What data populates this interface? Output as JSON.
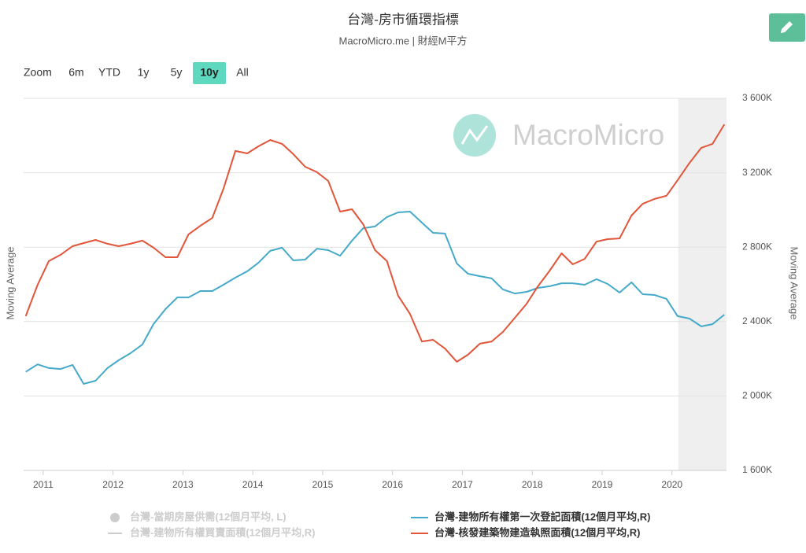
{
  "chart_data": {
    "type": "line",
    "title": "台灣-房市循環指標",
    "subtitle": "MacroMicro.me | 財經M平方",
    "y_label": "Moving Average",
    "y2_label": "Moving Average",
    "watermark": "MacroMicro",
    "x": [
      2010.75,
      2010.92,
      2011.08,
      2011.25,
      2011.42,
      2011.58,
      2011.75,
      2011.92,
      2012.08,
      2012.25,
      2012.42,
      2012.58,
      2012.75,
      2012.92,
      2013.08,
      2013.25,
      2013.42,
      2013.58,
      2013.75,
      2013.92,
      2014.08,
      2014.25,
      2014.42,
      2014.58,
      2014.75,
      2014.92,
      2015.08,
      2015.25,
      2015.42,
      2015.58,
      2015.75,
      2015.92,
      2016.08,
      2016.25,
      2016.42,
      2016.58,
      2016.75,
      2016.92,
      2017.08,
      2017.25,
      2017.42,
      2017.58,
      2017.75,
      2017.92,
      2018.08,
      2018.25,
      2018.42,
      2018.58,
      2018.75,
      2018.92,
      2019.08,
      2019.25,
      2019.42,
      2019.58,
      2019.75,
      2019.92,
      2020.08,
      2020.25,
      2020.42,
      2020.58,
      2020.75
    ],
    "xlim": [
      2010.72,
      2020.78
    ],
    "xticks": [
      2011,
      2012,
      2013,
      2014,
      2015,
      2016,
      2017,
      2018,
      2019,
      2020
    ],
    "y2lim": [
      1600,
      3600
    ],
    "y2ticks": [
      {
        "value": 1600,
        "label": "1 600K"
      },
      {
        "value": 2000,
        "label": "2 000K"
      },
      {
        "value": 2400,
        "label": "2 400K"
      },
      {
        "value": 2800,
        "label": "2 800K"
      },
      {
        "value": 3200,
        "label": "3 200K"
      },
      {
        "value": 3600,
        "label": "3 600K"
      }
    ],
    "grid": true,
    "plot_band": [
      2020.09,
      2020.78
    ],
    "series": [
      {
        "name": "台灣-建物所有權第一次登記面積(12個月平均,R)",
        "color": "#45a9c9",
        "axis": "y2",
        "values": [
          2130,
          2170,
          2150,
          2145,
          2167,
          2065,
          2082,
          2150,
          2192,
          2230,
          2277,
          2387,
          2467,
          2530,
          2530,
          2564,
          2564,
          2598,
          2636,
          2670,
          2716,
          2780,
          2797,
          2729,
          2733,
          2792,
          2784,
          2754,
          2835,
          2902,
          2911,
          2962,
          2987,
          2991,
          2932,
          2877,
          2873,
          2712,
          2657,
          2644,
          2632,
          2573,
          2551,
          2560,
          2581,
          2590,
          2606,
          2606,
          2598,
          2628,
          2602,
          2556,
          2611,
          2547,
          2543,
          2522,
          2429,
          2416,
          2374,
          2386,
          2437
        ]
      },
      {
        "name": "台灣-核發建築物建造執照面積(12個月平均,R)",
        "color": "#e2553a",
        "axis": "y2",
        "values": [
          2429,
          2598,
          2725,
          2759,
          2805,
          2822,
          2839,
          2818,
          2805,
          2818,
          2835,
          2797,
          2746,
          2746,
          2869,
          2915,
          2957,
          3114,
          3317,
          3304,
          3342,
          3376,
          3355,
          3300,
          3232,
          3203,
          3156,
          2991,
          3004,
          2923,
          2784,
          2725,
          2539,
          2441,
          2293,
          2302,
          2255,
          2184,
          2222,
          2281,
          2293,
          2344,
          2420,
          2496,
          2589,
          2674,
          2767,
          2708,
          2737,
          2830,
          2843,
          2847,
          2970,
          3033,
          3059,
          3076,
          3160,
          3253,
          3334,
          3355,
          3460
        ]
      }
    ],
    "hidden_series": [
      {
        "name": "台灣-當期房屋供需(12個月平均, L)",
        "marker": "circle"
      },
      {
        "name": "台灣-建物所有權買賣面積(12個月平均,R)",
        "marker": "line"
      }
    ]
  },
  "range_selector": {
    "label": "Zoom",
    "buttons": [
      "6m",
      "YTD",
      "1y",
      "5y",
      "10y",
      "All"
    ],
    "active": 4
  }
}
